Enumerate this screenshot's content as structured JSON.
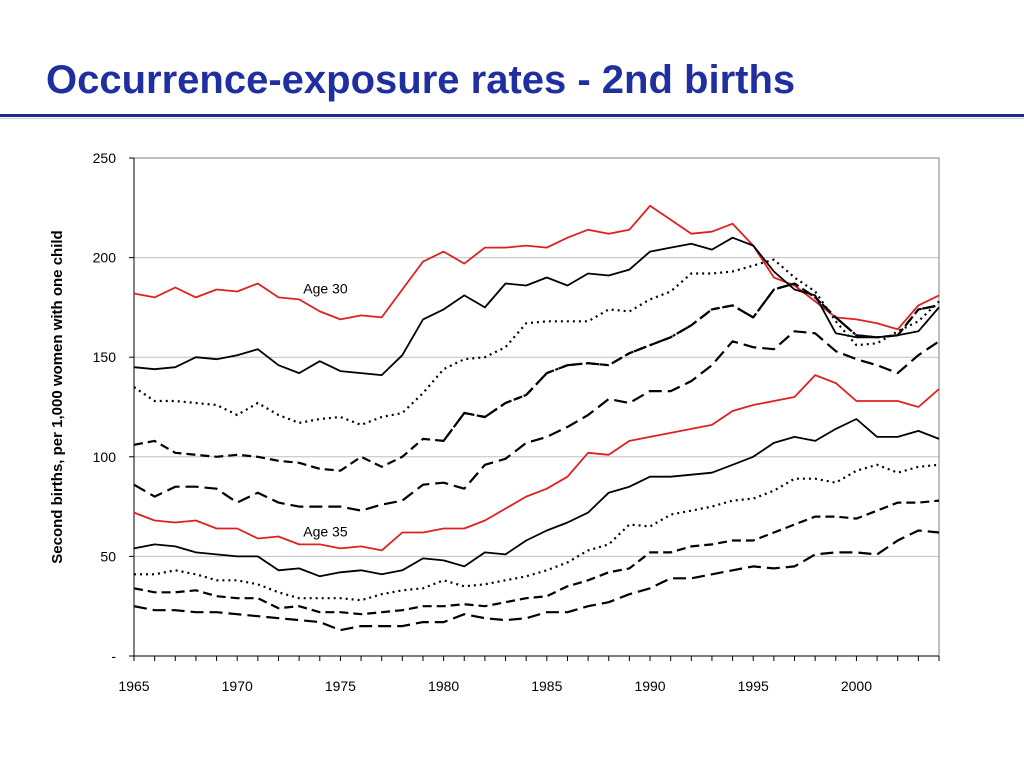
{
  "slide": {
    "title": "Occurrence-exposure rates - 2nd births"
  },
  "chart_data": {
    "type": "line",
    "xlabel": "",
    "ylabel": "Second births, per 1,000 women with one child",
    "xlim": [
      1965,
      2004
    ],
    "ylim": [
      0,
      250
    ],
    "x_ticks": [
      "1965",
      "1970",
      "1975",
      "1980",
      "1985",
      "1990",
      "1995",
      "2000"
    ],
    "y_ticks": [
      "-",
      "50",
      "100",
      "150",
      "200",
      "250"
    ],
    "grid": "horizontal",
    "x": [
      1965,
      1966,
      1967,
      1968,
      1969,
      1970,
      1971,
      1972,
      1973,
      1974,
      1975,
      1976,
      1977,
      1978,
      1979,
      1980,
      1981,
      1982,
      1983,
      1984,
      1985,
      1986,
      1987,
      1988,
      1989,
      1990,
      1991,
      1992,
      1993,
      1994,
      1995,
      1996,
      1997,
      1998,
      1999,
      2000,
      2001,
      2002,
      2003,
      2004
    ],
    "annotations": [
      {
        "text": "Age 30",
        "x": 1973.2,
        "y": 182
      },
      {
        "text": "Age 35",
        "x": 1973.2,
        "y": 60
      }
    ],
    "series": [
      {
        "color": "#e02020",
        "style": "solid",
        "values": [
          182,
          180,
          185,
          180,
          184,
          183,
          187,
          180,
          179,
          173,
          169,
          171,
          170,
          184,
          198,
          203,
          197,
          205,
          205,
          206,
          205,
          210,
          214,
          212,
          214,
          226,
          219,
          212,
          213,
          217,
          206,
          190,
          186,
          178,
          170,
          169,
          167,
          164,
          176,
          181
        ]
      },
      {
        "color": "#000000",
        "style": "solid",
        "values": [
          145,
          144,
          145,
          150,
          149,
          151,
          154,
          146,
          142,
          148,
          143,
          142,
          141,
          151,
          169,
          174,
          181,
          175,
          187,
          186,
          190,
          186,
          192,
          191,
          194,
          203,
          205,
          207,
          204,
          210,
          206,
          193,
          184,
          181,
          162,
          160,
          160,
          161,
          163,
          175
        ]
      },
      {
        "color": "#000000",
        "style": "dot",
        "values": [
          135,
          128,
          128,
          127,
          126,
          121,
          127,
          121,
          117,
          119,
          120,
          116,
          120,
          122,
          132,
          144,
          149,
          150,
          155,
          167,
          168,
          168,
          168,
          174,
          173,
          179,
          183,
          192,
          192,
          193,
          196,
          199,
          190,
          183,
          168,
          156,
          157,
          163,
          168,
          178
        ]
      },
      {
        "color": "#000000",
        "style": "dashdot",
        "values": [
          null,
          null,
          null,
          null,
          null,
          null,
          null,
          null,
          null,
          null,
          null,
          null,
          null,
          null,
          null,
          108,
          122,
          120,
          127,
          131,
          142,
          146,
          147,
          146,
          152,
          156,
          160,
          166,
          174,
          176,
          170,
          184,
          187,
          180,
          170,
          161,
          160,
          161,
          174,
          176
        ]
      },
      {
        "color": "#000000",
        "style": "dash",
        "values": [
          106,
          108,
          102,
          101,
          100,
          101,
          100,
          98,
          97,
          94,
          93,
          100,
          95,
          100,
          109,
          108,
          122,
          120,
          127,
          131,
          142,
          146,
          147,
          146,
          152,
          156,
          160,
          166,
          174,
          176,
          170,
          184,
          187,
          180,
          170,
          161,
          160,
          161,
          174,
          176
        ]
      },
      {
        "color": "#000000",
        "style": "longdash",
        "values": [
          86,
          80,
          85,
          85,
          84,
          77,
          82,
          77,
          75,
          75,
          75,
          73,
          76,
          78,
          86,
          87,
          84,
          96,
          99,
          107,
          110,
          115,
          121,
          129,
          127,
          133,
          133,
          138,
          146,
          158,
          155,
          154,
          163,
          162,
          153,
          149,
          146,
          142,
          151,
          158
        ]
      },
      {
        "color": "#e02020",
        "style": "solid",
        "values": [
          72,
          68,
          67,
          68,
          64,
          64,
          59,
          60,
          56,
          56,
          54,
          55,
          53,
          62,
          62,
          64,
          64,
          68,
          74,
          80,
          84,
          90,
          102,
          101,
          108,
          110,
          112,
          114,
          116,
          123,
          126,
          128,
          130,
          141,
          137,
          128,
          128,
          128,
          125,
          134
        ]
      },
      {
        "color": "#000000",
        "style": "solid",
        "values": [
          54,
          56,
          55,
          52,
          51,
          50,
          50,
          43,
          44,
          40,
          42,
          43,
          41,
          43,
          49,
          48,
          45,
          52,
          51,
          58,
          63,
          67,
          72,
          82,
          85,
          90,
          90,
          91,
          92,
          96,
          100,
          107,
          110,
          108,
          114,
          119,
          110,
          110,
          113,
          109
        ]
      },
      {
        "color": "#000000",
        "style": "dot",
        "values": [
          41,
          41,
          43,
          41,
          38,
          38,
          36,
          32,
          29,
          29,
          29,
          28,
          31,
          33,
          34,
          38,
          35,
          36,
          38,
          40,
          43,
          47,
          53,
          56,
          66,
          65,
          71,
          73,
          75,
          78,
          79,
          83,
          89,
          89,
          87,
          93,
          96,
          92,
          95,
          96
        ]
      },
      {
        "color": "#000000",
        "style": "dash",
        "values": [
          34,
          32,
          32,
          33,
          30,
          29,
          29,
          24,
          25,
          22,
          22,
          21,
          22,
          23,
          25,
          25,
          26,
          25,
          27,
          29,
          30,
          35,
          38,
          42,
          44,
          52,
          52,
          55,
          56,
          58,
          58,
          62,
          66,
          70,
          70,
          69,
          73,
          77,
          77,
          78
        ]
      },
      {
        "color": "#000000",
        "style": "longdash",
        "values": [
          25,
          23,
          23,
          22,
          22,
          21,
          20,
          19,
          18,
          17,
          13,
          15,
          15,
          15,
          17,
          17,
          21,
          19,
          18,
          19,
          22,
          22,
          25,
          27,
          31,
          34,
          39,
          39,
          41,
          43,
          45,
          44,
          45,
          51,
          52,
          52,
          51,
          58,
          63,
          62
        ]
      }
    ]
  }
}
